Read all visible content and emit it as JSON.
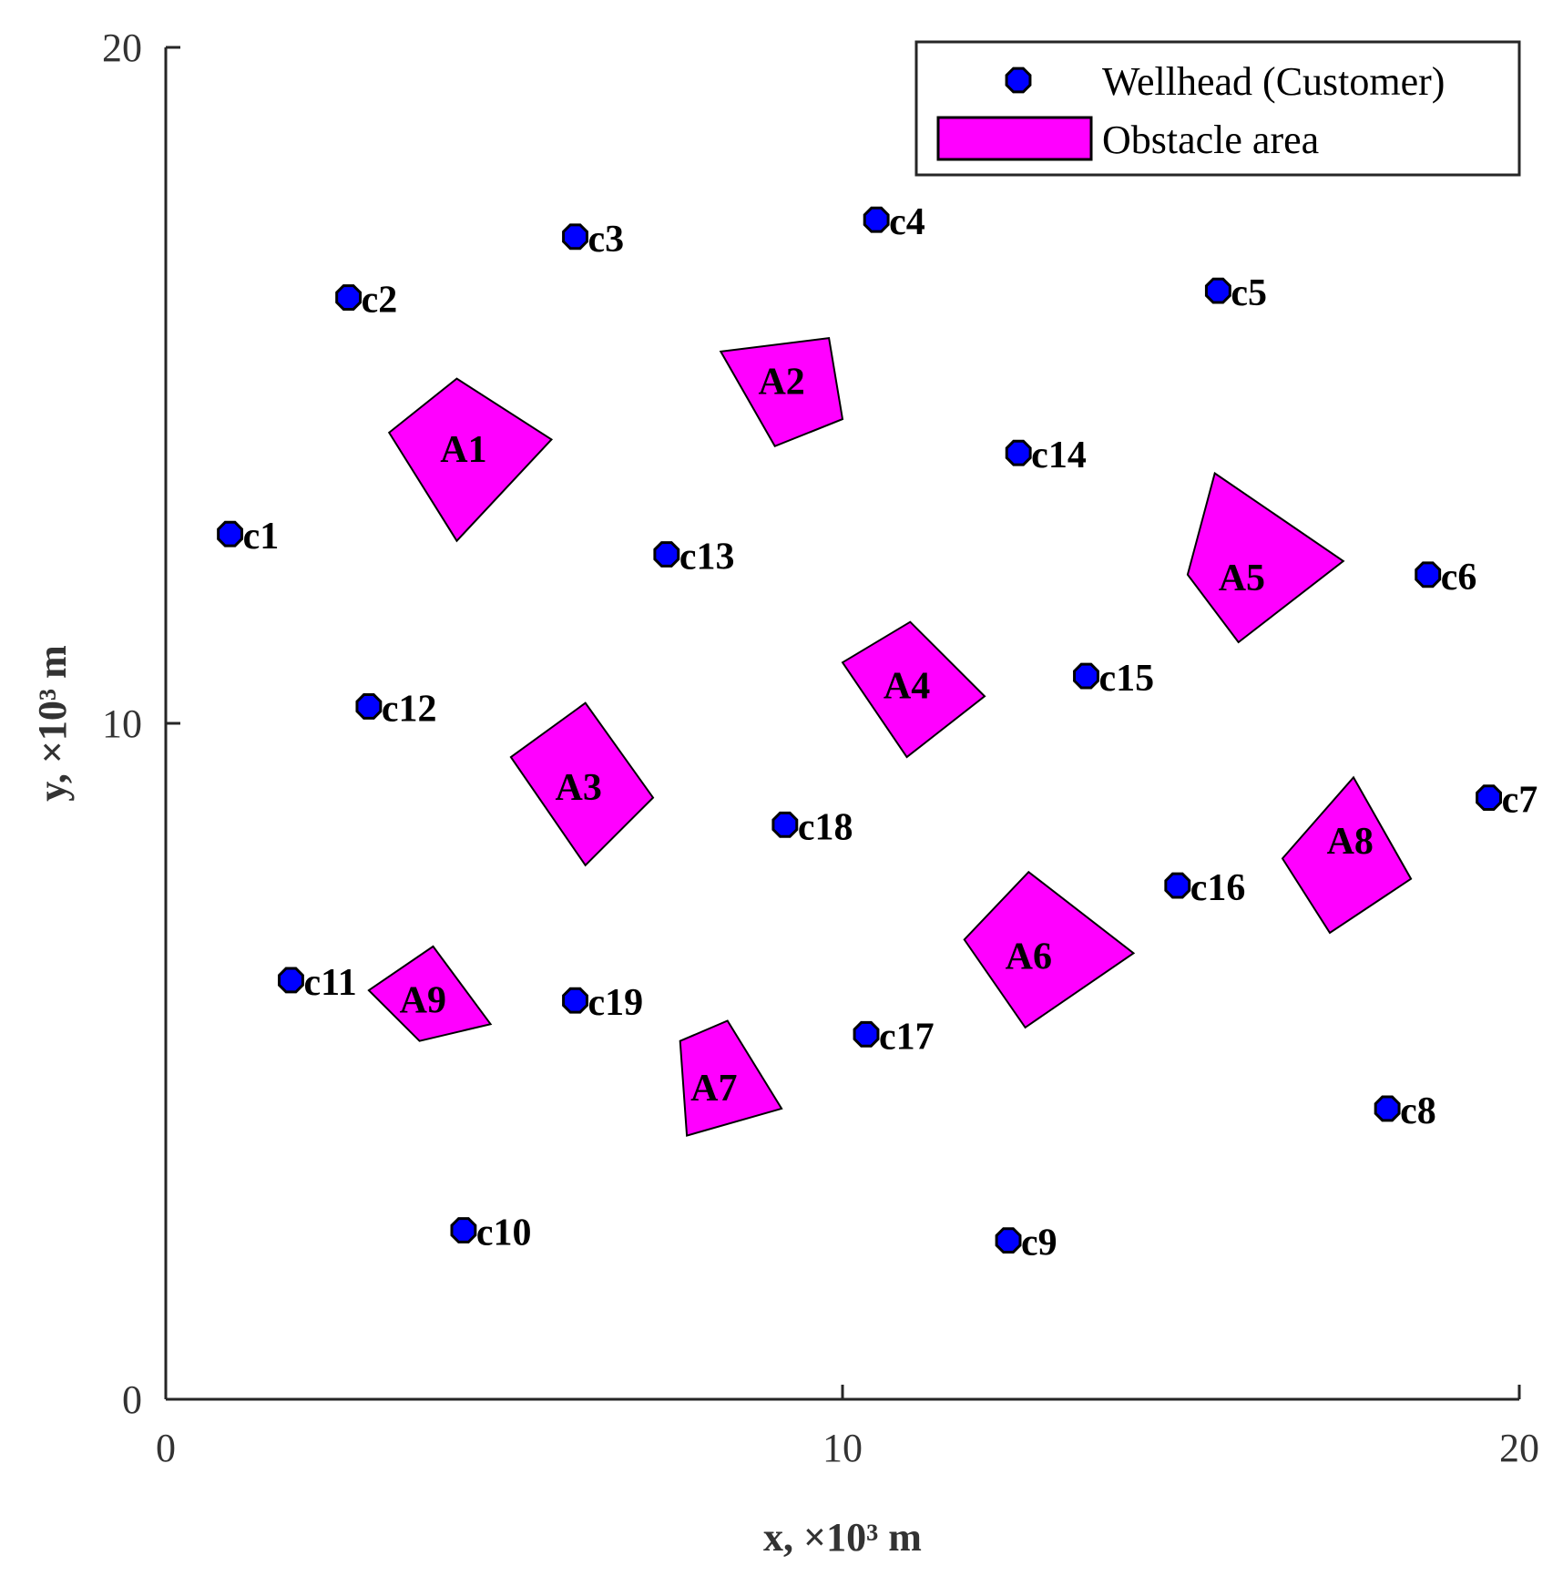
{
  "chart_data": {
    "type": "scatter",
    "xlabel": "x, ×10³ m",
    "ylabel": "y, ×10³ m",
    "xlim": [
      0,
      20
    ],
    "ylim": [
      0,
      20
    ],
    "xticks": [
      {
        "value": 0,
        "label": "0"
      },
      {
        "value": 10,
        "label": "10"
      },
      {
        "value": 20,
        "label": "20"
      }
    ],
    "yticks": [
      {
        "value": 0,
        "label": "0"
      },
      {
        "value": 10,
        "label": "10"
      },
      {
        "value": 20,
        "label": "20"
      }
    ],
    "grid": false,
    "legend": {
      "position": "top-right",
      "entries": [
        {
          "label": "Wellhead (Customer)",
          "marker": "circle",
          "color": "#0000ff"
        },
        {
          "label": "Obstacle area",
          "marker": "polygon",
          "color": "#ff00ff"
        }
      ]
    },
    "colors": {
      "customer": "#0000ff",
      "obstacle": "#ff00ff",
      "edge": "#000000"
    },
    "customers": [
      {
        "name": "c1",
        "x": 0.95,
        "y": 12.8
      },
      {
        "name": "c2",
        "x": 2.7,
        "y": 16.3
      },
      {
        "name": "c3",
        "x": 6.05,
        "y": 17.2
      },
      {
        "name": "c4",
        "x": 10.5,
        "y": 17.45
      },
      {
        "name": "c5",
        "x": 15.55,
        "y": 16.4
      },
      {
        "name": "c6",
        "x": 18.65,
        "y": 12.2
      },
      {
        "name": "c7",
        "x": 19.55,
        "y": 8.9
      },
      {
        "name": "c8",
        "x": 18.05,
        "y": 4.3
      },
      {
        "name": "c9",
        "x": 12.45,
        "y": 2.35
      },
      {
        "name": "c10",
        "x": 4.4,
        "y": 2.5
      },
      {
        "name": "c11",
        "x": 1.85,
        "y": 6.2
      },
      {
        "name": "c12",
        "x": 3.0,
        "y": 10.25
      },
      {
        "name": "c13",
        "x": 7.4,
        "y": 12.5
      },
      {
        "name": "c14",
        "x": 12.6,
        "y": 14.0
      },
      {
        "name": "c15",
        "x": 13.6,
        "y": 10.7
      },
      {
        "name": "c16",
        "x": 14.95,
        "y": 7.6
      },
      {
        "name": "c17",
        "x": 10.35,
        "y": 5.4
      },
      {
        "name": "c18",
        "x": 9.15,
        "y": 8.5
      },
      {
        "name": "c19",
        "x": 6.05,
        "y": 5.9
      }
    ],
    "obstacles": [
      {
        "name": "A1",
        "label_at": [
          4.4,
          14.0
        ],
        "vertices": [
          [
            3.3,
            14.3
          ],
          [
            4.3,
            15.1
          ],
          [
            5.7,
            14.2
          ],
          [
            4.3,
            12.7
          ]
        ]
      },
      {
        "name": "A2",
        "label_at": [
          9.1,
          15.0
        ],
        "vertices": [
          [
            8.2,
            15.5
          ],
          [
            9.8,
            15.7
          ],
          [
            10.0,
            14.5
          ],
          [
            9.0,
            14.1
          ]
        ]
      },
      {
        "name": "A3",
        "label_at": [
          6.1,
          9.0
        ],
        "vertices": [
          [
            5.1,
            9.5
          ],
          [
            6.2,
            10.3
          ],
          [
            7.2,
            8.9
          ],
          [
            6.2,
            7.9
          ]
        ]
      },
      {
        "name": "A4",
        "label_at": [
          10.95,
          10.5
        ],
        "vertices": [
          [
            10.0,
            10.9
          ],
          [
            11.0,
            11.5
          ],
          [
            12.1,
            10.4
          ],
          [
            10.95,
            9.5
          ]
        ]
      },
      {
        "name": "A5",
        "label_at": [
          15.9,
          12.1
        ],
        "vertices": [
          [
            15.1,
            12.2
          ],
          [
            15.5,
            13.7
          ],
          [
            17.4,
            12.4
          ],
          [
            15.85,
            11.2
          ]
        ]
      },
      {
        "name": "A6",
        "label_at": [
          12.75,
          6.5
        ],
        "vertices": [
          [
            11.8,
            6.8
          ],
          [
            12.75,
            7.8
          ],
          [
            14.3,
            6.6
          ],
          [
            12.7,
            5.5
          ]
        ]
      },
      {
        "name": "A7",
        "label_at": [
          8.1,
          4.55
        ],
        "vertices": [
          [
            7.6,
            5.3
          ],
          [
            8.3,
            5.6
          ],
          [
            9.1,
            4.3
          ],
          [
            7.7,
            3.9
          ]
        ]
      },
      {
        "name": "A8",
        "label_at": [
          17.5,
          8.2
        ],
        "vertices": [
          [
            16.5,
            8.0
          ],
          [
            17.55,
            9.2
          ],
          [
            18.4,
            7.7
          ],
          [
            17.2,
            6.9
          ]
        ]
      },
      {
        "name": "A9",
        "label_at": [
          3.8,
          5.85
        ],
        "vertices": [
          [
            3.0,
            6.05
          ],
          [
            3.95,
            6.7
          ],
          [
            4.8,
            5.55
          ],
          [
            3.75,
            5.3
          ]
        ]
      }
    ]
  }
}
